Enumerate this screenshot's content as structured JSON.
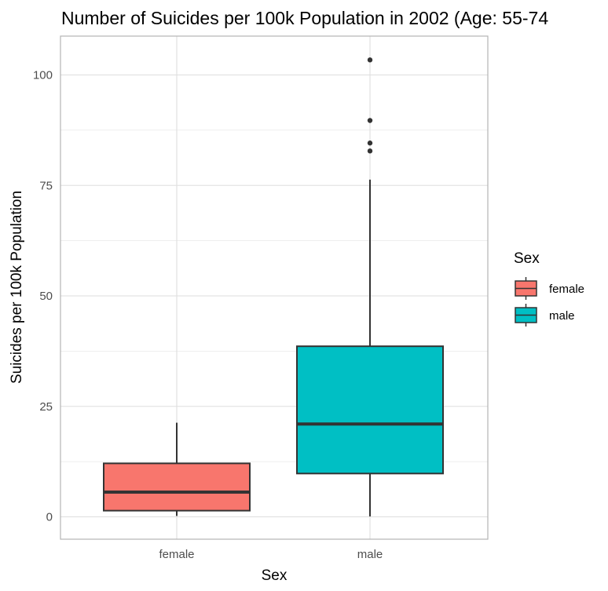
{
  "chart_data": {
    "type": "boxplot",
    "title": "Number of Suicides per 100k Population in 2002 (Age: 55-74",
    "xlabel": "Sex",
    "ylabel": "Suicides per 100k Population",
    "categories": [
      "female",
      "male"
    ],
    "ylim": [
      -5,
      108
    ],
    "yticks": [
      0,
      25,
      50,
      75,
      100
    ],
    "grid": true,
    "legend": {
      "title": "Sex",
      "placement": "right",
      "entries": [
        "female",
        "male"
      ]
    },
    "colors": {
      "female": "#F8766D",
      "male": "#00BFC4",
      "outline": "#333333",
      "grid": "#dedede",
      "panel_border": "#b3b3b3"
    },
    "series": [
      {
        "category": "female",
        "min": 0.2,
        "q1": 1.4,
        "median": 5.6,
        "q3": 12.1,
        "max": 21.3,
        "outliers": []
      },
      {
        "category": "male",
        "min": 0.1,
        "q1": 9.8,
        "median": 21.0,
        "q3": 38.6,
        "max": 76.3,
        "outliers": [
          82.8,
          84.6,
          89.7,
          103.4
        ]
      }
    ]
  }
}
